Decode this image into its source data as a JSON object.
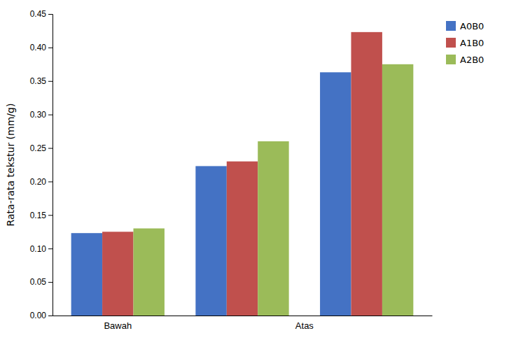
{
  "chart_data": {
    "type": "bar",
    "y_label": "Rata-rata tekstur (mm/g)",
    "categories": [
      "Bawah",
      "Atas",
      null
    ],
    "series": [
      {
        "name": "A0B0",
        "color": "#4472C4",
        "values": [
          0.123,
          0.223,
          0.363
        ]
      },
      {
        "name": "A1B0",
        "color": "#C0504D",
        "values": [
          0.125,
          0.23,
          0.423
        ]
      },
      {
        "name": "A2B0",
        "color": "#9BBB59",
        "values": [
          0.13,
          0.26,
          0.375
        ]
      }
    ],
    "ylim": [
      0.0,
      0.45
    ],
    "yticks": [
      {
        "value": 0.0,
        "label": "0.00"
      },
      0.05,
      {
        "value": 0.1,
        "label": "0.10"
      },
      0.15,
      {
        "value": 0.2,
        "label": "0.20"
      },
      0.25,
      {
        "value": 0.3,
        "label": "0.30"
      },
      0.35,
      {
        "value": 0.4,
        "label": "0.40"
      },
      0.45
    ],
    "grid": false,
    "legend": "right"
  }
}
